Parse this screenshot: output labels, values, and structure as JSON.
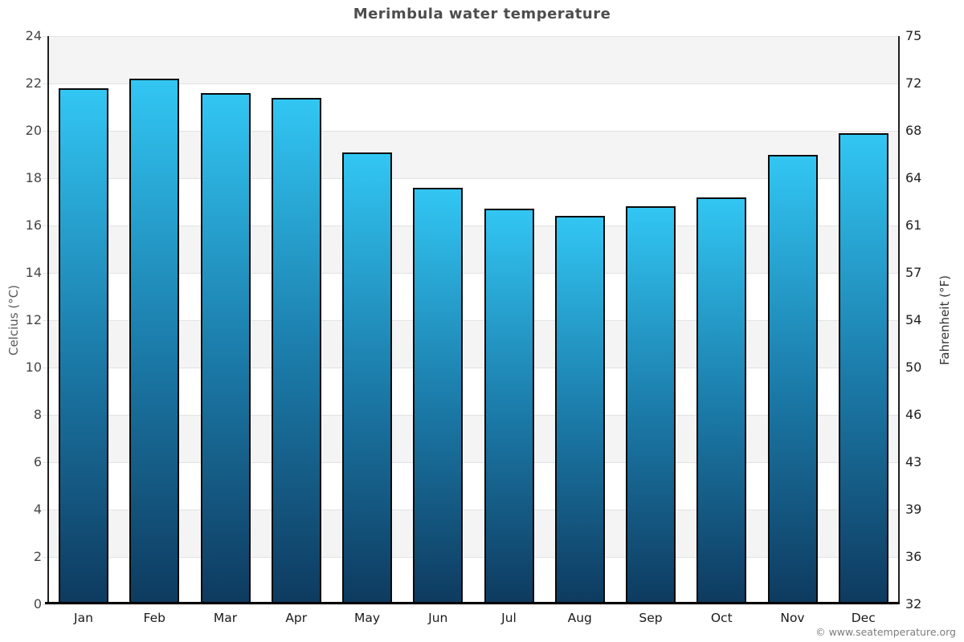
{
  "title": "Merimbula water temperature",
  "watermark": "© www.seatemperature.org",
  "chart_data": {
    "type": "bar",
    "title": "Merimbula water temperature",
    "categories": [
      "Jan",
      "Feb",
      "Mar",
      "Apr",
      "May",
      "Jun",
      "Jul",
      "Aug",
      "Sep",
      "Oct",
      "Nov",
      "Dec"
    ],
    "values": [
      21.8,
      22.2,
      21.6,
      21.4,
      19.1,
      17.6,
      16.7,
      16.4,
      16.8,
      17.2,
      19.0,
      19.9
    ],
    "ylabel": "Celcius (°C)",
    "y2label": "Fahrenheit (°F)",
    "ylim": [
      0,
      24
    ],
    "y_tick_step": 2,
    "y_tick_labels": [
      "0",
      "2",
      "4",
      "6",
      "8",
      "10",
      "12",
      "14",
      "16",
      "18",
      "20",
      "22",
      "24"
    ],
    "y2_tick_labels": [
      "32",
      "36",
      "39",
      "43",
      "46",
      "50",
      "54",
      "57",
      "61",
      "64",
      "68",
      "72",
      "75"
    ],
    "grid": "alternating-bands",
    "legend": "none",
    "colors": {
      "band_gray": "#f4f4f4",
      "band_white": "#ffffff",
      "gridline": "#e2e2e2",
      "bar_top": "#32c6f3",
      "bar_mid": "#1b7aa8",
      "bar_bottom": "#0e3a5f",
      "bar_border": "#0a0a0a",
      "axis": "#1f1f1f",
      "title_text": "#4d4d4d"
    }
  }
}
